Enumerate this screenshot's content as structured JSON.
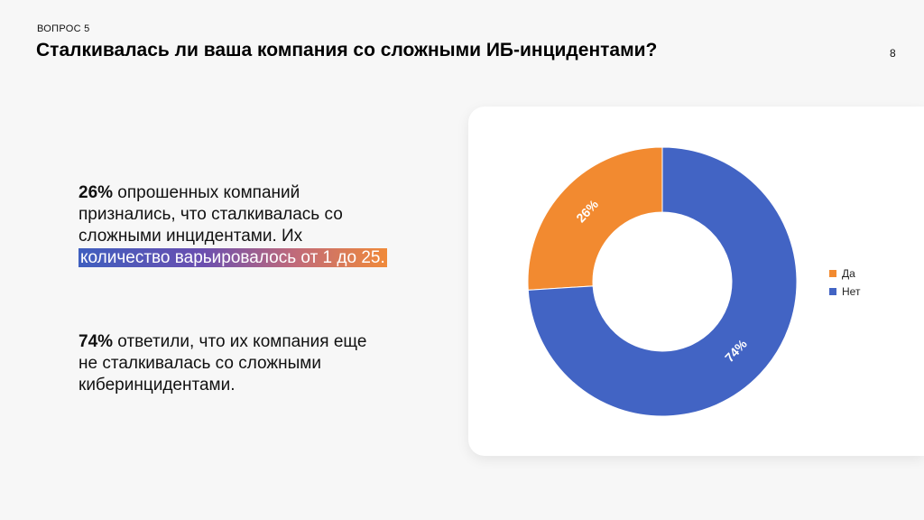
{
  "header": {
    "kicker": "ВОПРОС 5",
    "title": "Сталкивалась ли ваша компания со сложными ИБ-инцидентами?",
    "page_number": "8"
  },
  "text": {
    "block1": {
      "percent": "26%",
      "line1_rest": " опрошенных компаний",
      "line2": "признались, что сталкивалась со",
      "line3": "сложными инцидентами. Их",
      "line4_highlight": "количество варьировалось от 1 до 25."
    },
    "block2": {
      "percent": "74%",
      "line1_rest": " ответили, что их компания еще",
      "line2": "не сталкивалась со сложными",
      "line3": "киберинцидентами."
    }
  },
  "colors": {
    "yes": "#f28a30",
    "no": "#4264c4"
  },
  "chart_data": {
    "type": "pie",
    "variant": "donut",
    "title": "",
    "categories": [
      "Да",
      "Нет"
    ],
    "values": [
      26,
      74
    ],
    "labels": [
      "26%",
      "74%"
    ],
    "colors": [
      "#f28a30",
      "#4264c4"
    ],
    "legend_position": "right"
  }
}
